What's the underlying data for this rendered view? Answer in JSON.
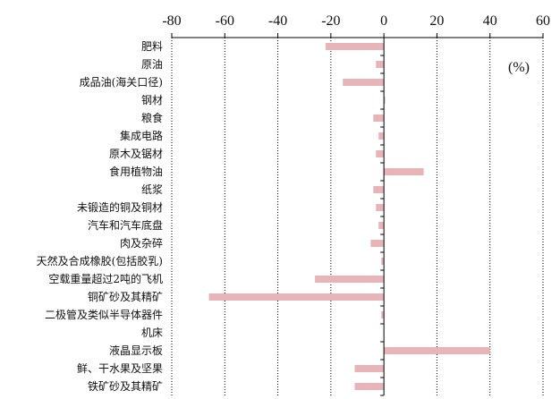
{
  "chart_data": {
    "type": "bar",
    "orientation": "horizontal",
    "categories": [
      "肥料",
      "原油",
      "成品油(海关口径)",
      "钢材",
      "粮食",
      "集成电路",
      "原木及锯材",
      "食用植物油",
      "纸浆",
      "未锻造的铜及铜材",
      "汽车和汽车底盘",
      "肉及杂碎",
      "天然及合成橡胶(包括胶乳)",
      "空载重量超过2吨的飞机",
      "铜矿砂及其精矿",
      "二极管及类似半导体器件",
      "机床",
      "液晶显示板",
      "鲜、干水果及坚果",
      "铁矿砂及其精矿"
    ],
    "values": [
      -22,
      -3,
      -15.5,
      0.5,
      -4,
      -2,
      -3,
      15,
      -4,
      -3,
      -2,
      -5,
      -1,
      -26,
      -66,
      -1,
      0,
      40,
      -11,
      -11
    ],
    "xlim": [
      -80,
      60
    ],
    "xticks": [
      -80,
      -60,
      -40,
      -20,
      0,
      20,
      40,
      60
    ],
    "xtick_labels": [
      "-80",
      "-60",
      "-40",
      "-20",
      "0",
      "20",
      "40",
      "60"
    ],
    "x_axis_position": "top",
    "unit": "(%)",
    "grid": true,
    "bar_color": "#e7b5b7",
    "axis_color": "#000000"
  }
}
